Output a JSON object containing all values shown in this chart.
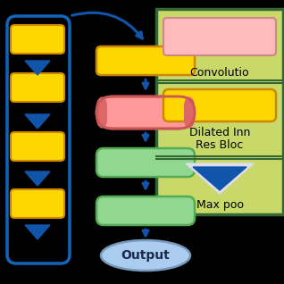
{
  "bg_color": "#000000",
  "legend_bg": "#c8d96a",
  "legend_border": "#336633",
  "yellow": "#FFD700",
  "yellow_border": "#CC8800",
  "pink_grad": "#FF8888",
  "pink_border": "#BB4444",
  "green": "#90D890",
  "green_border": "#55AA55",
  "light_pink": "#FFBBBB",
  "light_pink_border": "#CC8888",
  "light_blue_ellipse": "#AACCEE",
  "ellipse_border": "#7799BB",
  "arrow_color": "#1155AA",
  "blue_border": "#1166BB",
  "white_triangle": "#DDDDEE",
  "legend_conv_text": "Convolutio",
  "legend_dilated_text1": "Dilated Inn",
  "legend_dilated_text2": "Res Bloc",
  "legend_maxpool_text": "Max poo",
  "output_text": "Output"
}
